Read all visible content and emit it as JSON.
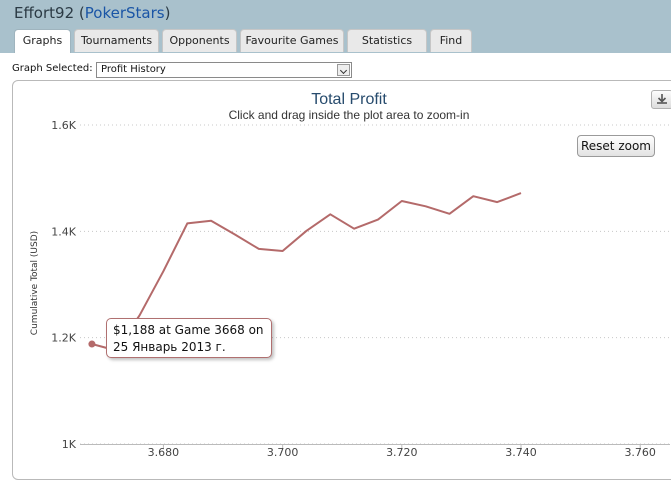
{
  "header": {
    "player_name": "Effort92",
    "site_open": "(",
    "site_name": "PokerStars",
    "site_close": ")"
  },
  "tabs": [
    {
      "label": "Graphs",
      "active": true
    },
    {
      "label": "Tournaments",
      "active": false
    },
    {
      "label": "Opponents",
      "active": false
    },
    {
      "label": "Favourite Games",
      "active": false
    },
    {
      "label": "Statistics",
      "active": false
    },
    {
      "label": "Find",
      "active": false
    }
  ],
  "graph_selector": {
    "label": "Graph Selected:",
    "value": "Profit History"
  },
  "reset_zoom_label": "Reset zoom",
  "tooltip": {
    "line1": "$1,188 at Game 3668 on",
    "line2": "25 Январь 2013 г."
  },
  "colors": {
    "header_bg": "#a9c1cc",
    "site_link": "#1a55a6",
    "series": "#b46a6a",
    "title": "#274b6d"
  },
  "chart_data": {
    "type": "line",
    "title": "Total Profit",
    "subtitle": "Click and drag inside the plot area to zoom-in",
    "ylabel": "Cumulative Total (USD)",
    "xlabel": "",
    "x_ticks": [
      "3.680",
      "3.700",
      "3.720",
      "3.740",
      "3.760"
    ],
    "x_tick_values": [
      3680,
      3700,
      3720,
      3740,
      3760
    ],
    "y_ticks": [
      "1K",
      "1.2K",
      "1.4K",
      "1.6K"
    ],
    "y_tick_values": [
      1000,
      1200,
      1400,
      1600
    ],
    "xlim": [
      3666,
      3765
    ],
    "ylim": [
      1000,
      1600
    ],
    "grid": true,
    "series": [
      {
        "x": [
          3668,
          3672,
          3676,
          3680,
          3684,
          3688,
          3692,
          3696,
          3700,
          3704,
          3708,
          3712,
          3716,
          3720,
          3724,
          3728,
          3732,
          3736,
          3740
        ],
        "y": [
          1188,
          1176,
          1242,
          1325,
          1415,
          1420,
          1394,
          1367,
          1363,
          1401,
          1432,
          1405,
          1422,
          1457,
          1447,
          1433,
          1466,
          1455,
          1472
        ]
      }
    ]
  }
}
